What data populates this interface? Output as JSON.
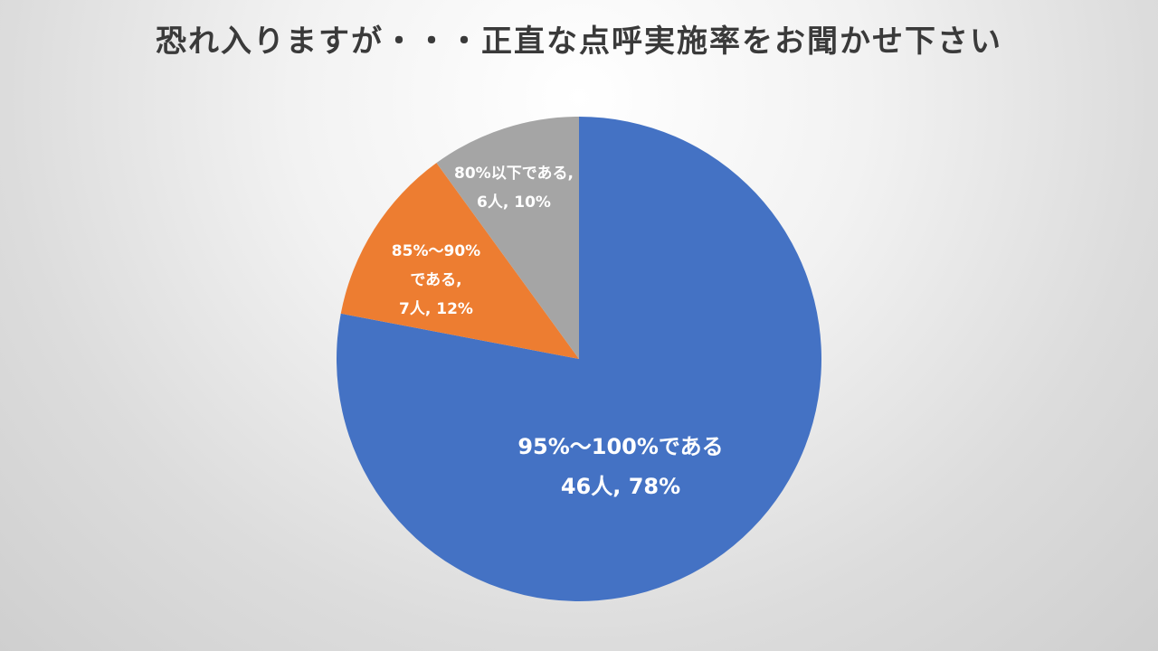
{
  "chart_data": {
    "type": "pie",
    "title": "恐れ入りますが・・・正直な点呼実施率をお聞かせ下さい",
    "slices": [
      {
        "category": "95%～100%である",
        "count_text": "46人",
        "count": 46,
        "percent": 78,
        "percent_text": "78%",
        "color": "#4472C4",
        "label_lines": [
          "95%～100%である",
          "46人, 78%"
        ]
      },
      {
        "category": "85%～90%である",
        "count_text": "7人",
        "count": 7,
        "percent": 12,
        "percent_text": "12%",
        "color": "#ED7D31",
        "label_lines": [
          "85%～90%",
          "である,",
          "7人, 12%"
        ]
      },
      {
        "category": "80%以下である",
        "count_text": "6人",
        "count": 6,
        "percent": 10,
        "percent_text": "10%",
        "color": "#A5A5A5",
        "label_lines": [
          "80%以下である,",
          "6人, 10%"
        ]
      }
    ]
  }
}
